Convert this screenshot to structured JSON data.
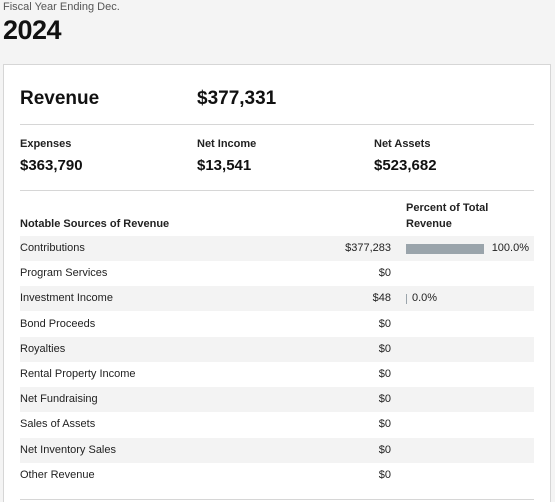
{
  "fiscal": {
    "label": "Fiscal Year Ending Dec.",
    "year": "2024"
  },
  "summary": {
    "revenue_label": "Revenue",
    "revenue_value": "$377,331",
    "stats": [
      {
        "label": "Expenses",
        "value": "$363,790"
      },
      {
        "label": "Net Income",
        "value": "$13,541"
      },
      {
        "label": "Net Assets",
        "value": "$523,682"
      }
    ]
  },
  "sources": {
    "title": "Notable Sources of Revenue",
    "percent_header_line1": "Percent of Total",
    "percent_header_line2": "Revenue",
    "rows": [
      {
        "name": "Contributions",
        "amount": "$377,283",
        "percent_label": "100.0%",
        "percent": 100.0
      },
      {
        "name": "Program Services",
        "amount": "$0",
        "percent_label": "",
        "percent": 0
      },
      {
        "name": "Investment Income",
        "amount": "$48",
        "percent_label": "0.0%",
        "percent": 0.01
      },
      {
        "name": "Bond Proceeds",
        "amount": "$0",
        "percent_label": "",
        "percent": 0
      },
      {
        "name": "Royalties",
        "amount": "$0",
        "percent_label": "",
        "percent": 0
      },
      {
        "name": "Rental Property Income",
        "amount": "$0",
        "percent_label": "",
        "percent": 0
      },
      {
        "name": "Net Fundraising",
        "amount": "$0",
        "percent_label": "",
        "percent": 0
      },
      {
        "name": "Sales of Assets",
        "amount": "$0",
        "percent_label": "",
        "percent": 0
      },
      {
        "name": "Net Inventory Sales",
        "amount": "$0",
        "percent_label": "",
        "percent": 0
      },
      {
        "name": "Other Revenue",
        "amount": "$0",
        "percent_label": "",
        "percent": 0
      }
    ]
  },
  "colors": {
    "bar": "#9aa4ab",
    "row_shade": "#f3f3f3"
  }
}
